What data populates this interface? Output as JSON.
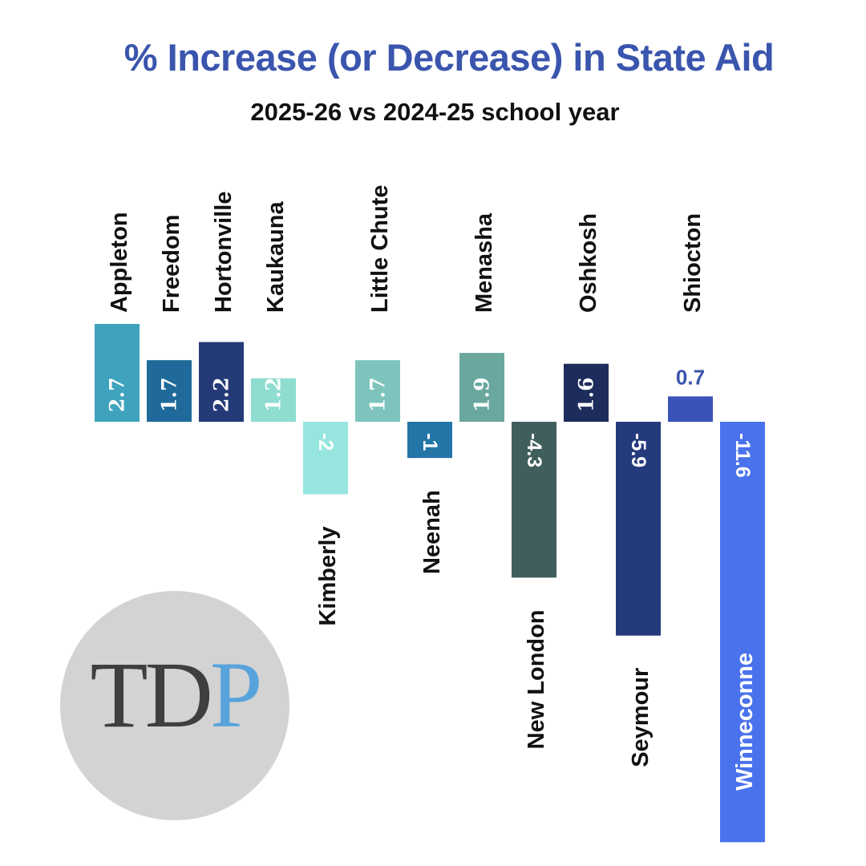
{
  "chart_data": {
    "type": "bar",
    "title": "% Increase (or Decrease) in State Aid",
    "subtitle": "2025-26 vs 2024-25 school year",
    "xlabel": "",
    "ylabel": "",
    "grid": false,
    "legend": "none",
    "categories": [
      "Appleton",
      "Freedom",
      "Hortonville",
      "Kaukauna",
      "Kimberly",
      "Little Chute",
      "Neenah",
      "Menasha",
      "New London",
      "Oshkosh",
      "Seymour",
      "Shiocton",
      "Winneconne"
    ],
    "values": [
      2.7,
      1.7,
      2.2,
      1.2,
      -2,
      1.7,
      -1,
      1.9,
      -4.3,
      1.6,
      -5.9,
      0.7,
      -11.6
    ],
    "value_labels": [
      "2.7",
      "1.7",
      "2.2",
      "1.2",
      "-2",
      "1.7",
      "-1",
      "1.9",
      "-4.3",
      "1.6",
      "-5.9",
      "0.7",
      "-11.6"
    ],
    "colors": [
      "#3fa3be",
      "#1f6a9a",
      "#233a77",
      "#8fdcd1",
      "#96e6df",
      "#7ec4bc",
      "#2275a6",
      "#6aa79e",
      "#3f5e5c",
      "#1e2c5b",
      "#243a7c",
      "#3953b8",
      "#4a72ec"
    ],
    "ylim": [
      -11.6,
      2.7
    ]
  },
  "colors": {
    "title": "#3a55ad",
    "subtitle": "#111111",
    "label_dark": "#111111",
    "label_light": "#ffffff",
    "outside_value_label": "#3a55ad"
  },
  "logo": {
    "text_dark": "TD",
    "text_accent": "P"
  }
}
